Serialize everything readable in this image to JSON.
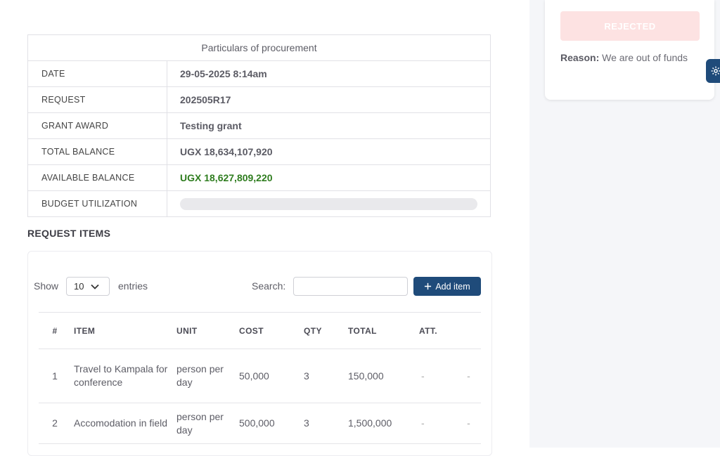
{
  "particulars": {
    "caption": "Particulars of procurement",
    "rows": [
      {
        "label": "DATE",
        "value": "29-05-2025 8:14am"
      },
      {
        "label": "REQUEST",
        "value": "202505R17"
      },
      {
        "label": "GRANT AWARD",
        "value": "Testing grant"
      },
      {
        "label": "TOTAL BALANCE",
        "value": "UGX 18,634,107,920"
      },
      {
        "label": "AVAILABLE BALANCE",
        "value": "UGX 18,627,809,220"
      },
      {
        "label": "BUDGET UTILIZATION",
        "value": ""
      }
    ],
    "available_color": "#2f7d1f"
  },
  "status": {
    "label": "REJECTED",
    "reason_label": "Reason:",
    "reason_text": "We are out of funds"
  },
  "items_section": {
    "title": "REQUEST ITEMS",
    "show_label": "Show",
    "entries_value": "10",
    "entries_label": "entries",
    "search_label": "Search:",
    "search_value": "",
    "add_button": "Add item",
    "columns": [
      "#",
      "ITEM",
      "UNIT",
      "COST",
      "QTY",
      "TOTAL",
      "ATT.",
      ""
    ],
    "rows": [
      {
        "num": "1",
        "item": "Travel to Kampala for conference",
        "unit": "person per day",
        "cost": "50,000",
        "qty": "3",
        "total": "150,000",
        "att": "-",
        "action": "-"
      },
      {
        "num": "2",
        "item": "Accomodation in field",
        "unit": "person per day",
        "cost": "500,000",
        "qty": "3",
        "total": "1,500,000",
        "att": "-",
        "action": "-"
      }
    ]
  },
  "colors": {
    "primary": "#1f4b7a",
    "rejected_bg": "#fde2e2"
  }
}
